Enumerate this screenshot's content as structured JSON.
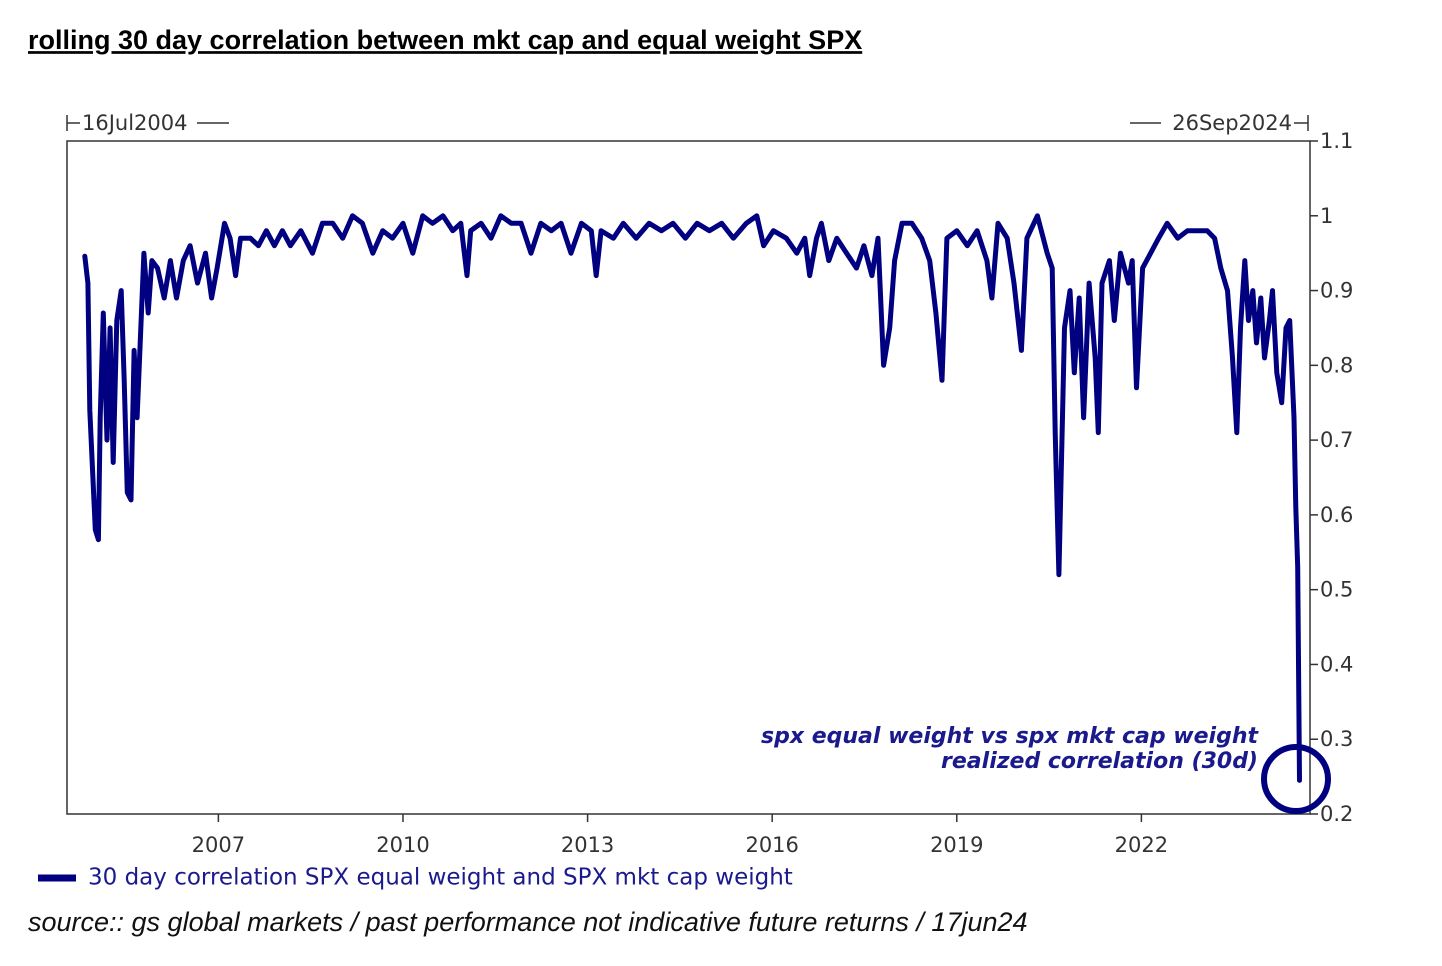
{
  "chart_data": {
    "type": "line",
    "title": "rolling 30 day correlation between mkt cap and equal weight SPX",
    "start_label": "16Jul2004",
    "end_label": "26Sep2024",
    "annotation": [
      "spx equal weight vs spx mkt cap weight",
      "realized correlation (30d)"
    ],
    "source": "source:: gs global markets / past performance not indicative future returns / 17jun24",
    "xlim": [
      2004.54,
      2024.74
    ],
    "xticks": [
      2007,
      2010,
      2013,
      2016,
      2019,
      2022
    ],
    "ylim": [
      0.2,
      1.1
    ],
    "yticks": [
      0.2,
      0.3,
      0.4,
      0.5,
      0.6,
      0.7,
      0.8,
      0.9,
      1,
      1.1
    ],
    "x": [
      2004.83,
      2004.88,
      2004.91,
      2005.0,
      2005.05,
      2005.08,
      2005.13,
      2005.19,
      2005.24,
      2005.29,
      2005.35,
      2005.42,
      2005.47,
      2005.52,
      2005.58,
      2005.63,
      2005.68,
      2005.73,
      2005.79,
      2005.86,
      2005.92,
      2006.01,
      2006.12,
      2006.22,
      2006.32,
      2006.43,
      2006.54,
      2006.66,
      2006.79,
      2006.89,
      2006.98,
      2007.1,
      2007.19,
      2007.28,
      2007.36,
      2007.52,
      2007.65,
      2007.78,
      2007.91,
      2008.04,
      2008.17,
      2008.34,
      2008.53,
      2008.69,
      2008.86,
      2009.02,
      2009.18,
      2009.34,
      2009.51,
      2009.67,
      2009.83,
      2010.0,
      2010.16,
      2010.32,
      2010.48,
      2010.65,
      2010.81,
      2010.94,
      2011.04,
      2011.1,
      2011.27,
      2011.43,
      2011.59,
      2011.76,
      2011.92,
      2012.08,
      2012.24,
      2012.41,
      2012.57,
      2012.73,
      2012.9,
      2013.06,
      2013.14,
      2013.22,
      2013.42,
      2013.58,
      2013.79,
      2014.0,
      2014.2,
      2014.39,
      2014.59,
      2014.78,
      2014.98,
      2015.18,
      2015.37,
      2015.58,
      2015.75,
      2015.86,
      2016.02,
      2016.23,
      2016.4,
      2016.53,
      2016.61,
      2016.72,
      2016.8,
      2016.92,
      2017.05,
      2017.21,
      2017.37,
      2017.49,
      2017.62,
      2017.72,
      2017.81,
      2017.91,
      2017.99,
      2018.11,
      2018.27,
      2018.43,
      2018.56,
      2018.66,
      2018.76,
      2018.84,
      2019.0,
      2019.17,
      2019.33,
      2019.49,
      2019.57,
      2019.67,
      2019.82,
      2019.93,
      2020.05,
      2020.14,
      2020.31,
      2020.47,
      2020.55,
      2020.6,
      2020.66,
      2020.75,
      2020.84,
      2020.91,
      2020.99,
      2021.06,
      2021.15,
      2021.25,
      2021.3,
      2021.36,
      2021.48,
      2021.56,
      2021.66,
      2021.79,
      2021.85,
      2021.92,
      2022.02,
      2022.15,
      2022.28,
      2022.42,
      2022.59,
      2022.75,
      2022.91,
      2023.07,
      2023.19,
      2023.29,
      2023.4,
      2023.48,
      2023.55,
      2023.61,
      2023.68,
      2023.74,
      2023.81,
      2023.87,
      2023.94,
      2024.0,
      2024.08,
      2024.13,
      2024.2,
      2024.28,
      2024.35,
      2024.41,
      2024.48,
      2024.51,
      2024.54,
      2024.57
    ],
    "series": [
      {
        "name": "30 day correlation SPX equal weight and SPX mkt cap weight",
        "color": "#000080",
        "values": [
          0.946,
          0.91,
          0.74,
          0.58,
          0.567,
          0.73,
          0.87,
          0.7,
          0.85,
          0.67,
          0.86,
          0.9,
          0.78,
          0.63,
          0.62,
          0.82,
          0.73,
          0.83,
          0.95,
          0.87,
          0.94,
          0.93,
          0.89,
          0.94,
          0.89,
          0.94,
          0.96,
          0.91,
          0.95,
          0.89,
          0.93,
          0.99,
          0.97,
          0.92,
          0.97,
          0.97,
          0.96,
          0.98,
          0.96,
          0.98,
          0.96,
          0.98,
          0.95,
          0.99,
          0.99,
          0.97,
          1.0,
          0.99,
          0.95,
          0.98,
          0.97,
          0.99,
          0.95,
          1.0,
          0.99,
          1.0,
          0.98,
          0.99,
          0.92,
          0.98,
          0.99,
          0.97,
          1.0,
          0.99,
          0.99,
          0.95,
          0.99,
          0.98,
          0.99,
          0.95,
          0.99,
          0.98,
          0.92,
          0.98,
          0.97,
          0.99,
          0.97,
          0.99,
          0.98,
          0.99,
          0.97,
          0.99,
          0.98,
          0.99,
          0.97,
          0.99,
          1.0,
          0.96,
          0.98,
          0.97,
          0.95,
          0.97,
          0.92,
          0.97,
          0.99,
          0.94,
          0.97,
          0.95,
          0.93,
          0.96,
          0.92,
          0.97,
          0.8,
          0.85,
          0.94,
          0.99,
          0.99,
          0.97,
          0.94,
          0.87,
          0.78,
          0.97,
          0.98,
          0.96,
          0.98,
          0.94,
          0.89,
          0.99,
          0.97,
          0.91,
          0.82,
          0.97,
          1.0,
          0.95,
          0.93,
          0.71,
          0.52,
          0.85,
          0.9,
          0.79,
          0.89,
          0.73,
          0.91,
          0.81,
          0.71,
          0.91,
          0.94,
          0.86,
          0.95,
          0.91,
          0.94,
          0.77,
          0.93,
          0.95,
          0.97,
          0.99,
          0.97,
          0.98,
          0.98,
          0.98,
          0.97,
          0.93,
          0.9,
          0.81,
          0.71,
          0.85,
          0.94,
          0.86,
          0.9,
          0.83,
          0.89,
          0.81,
          0.86,
          0.9,
          0.79,
          0.75,
          0.85,
          0.86,
          0.73,
          0.61,
          0.53,
          0.245
        ]
      }
    ]
  }
}
